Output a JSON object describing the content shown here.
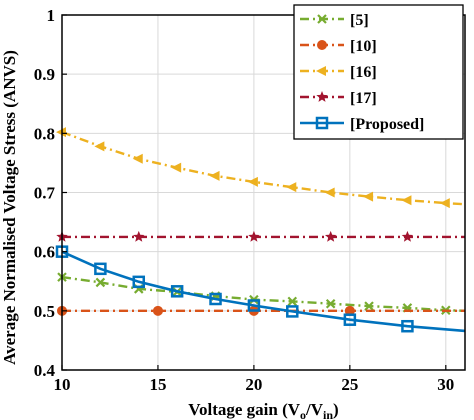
{
  "chart_data": {
    "type": "line",
    "xlabel": "Voltage gain (V",
    "xlabel_sub1": "o",
    "xlabel_mid": "/V",
    "xlabel_sub2": "in",
    "xlabel_end": ")",
    "ylabel": "Average Normalised Voltage Stress (ANVS)",
    "xlim": [
      10,
      31
    ],
    "ylim": [
      0.4,
      1.0
    ],
    "xticks": [
      10,
      15,
      20,
      25,
      30
    ],
    "yticks": [
      0.4,
      0.5,
      0.6,
      0.7,
      0.8,
      0.9,
      1
    ],
    "xtick_labels": [
      "10",
      "15",
      "20",
      "25",
      "30"
    ],
    "ytick_labels": [
      "0.4",
      "0.5",
      "0.6",
      "0.7",
      "0.8",
      "0.9",
      "1"
    ],
    "grid": true,
    "legend_position": "top-right",
    "series": [
      {
        "name": "[5]",
        "color": "#77AC30",
        "dash": "dashdot",
        "marker": "x",
        "x": [
          10,
          12,
          14,
          16,
          18,
          20,
          22,
          24,
          26,
          28,
          30,
          31
        ],
        "y": [
          0.557,
          0.548,
          0.537,
          0.532,
          0.525,
          0.519,
          0.516,
          0.512,
          0.508,
          0.505,
          0.501,
          0.5
        ]
      },
      {
        "name": "[10]",
        "color": "#D95319",
        "dash": "dashdot",
        "marker": "o",
        "x": [
          10,
          15,
          20,
          25,
          31
        ],
        "y": [
          0.5,
          0.5,
          0.5,
          0.5,
          0.5
        ]
      },
      {
        "name": "[16]",
        "color": "#EDB120",
        "dash": "dashdot",
        "marker": "triangle-left",
        "x": [
          10,
          12,
          14,
          16,
          18,
          20,
          22,
          24,
          26,
          28,
          30,
          31
        ],
        "y": [
          0.802,
          0.778,
          0.757,
          0.742,
          0.728,
          0.718,
          0.709,
          0.7,
          0.693,
          0.687,
          0.682,
          0.68
        ]
      },
      {
        "name": "[17]",
        "color": "#A2142F",
        "dash": "dashdot",
        "marker": "star",
        "x": [
          10,
          14,
          20,
          24,
          28,
          31
        ],
        "y": [
          0.625,
          0.625,
          0.625,
          0.625,
          0.625,
          0.625
        ]
      },
      {
        "name": "[Proposed]",
        "color": "#0072BD",
        "dash": "solid",
        "marker": "square",
        "x": [
          10,
          12,
          14,
          16,
          18,
          20,
          22,
          25,
          28,
          31
        ],
        "y": [
          0.6,
          0.571,
          0.549,
          0.533,
          0.52,
          0.509,
          0.499,
          0.485,
          0.474,
          0.466
        ]
      }
    ]
  }
}
